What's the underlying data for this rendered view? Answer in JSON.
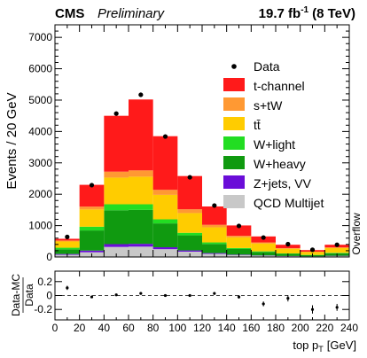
{
  "chart_data": {
    "type": "bar",
    "stacked": true,
    "header": {
      "experiment": "CMS",
      "status": "Preliminary",
      "lumi_value": "19.7 fb",
      "lumi_exp": "-1",
      "lumi_energy": "(8 TeV)"
    },
    "ylabel": "Events / 20 GeV",
    "xlabel_main": "top p",
    "xlabel_sub": "T",
    "xlabel_unit": "[GeV]",
    "overflow_label": "Overflow",
    "ratio_ylabel_top": "Data-MC",
    "ratio_ylabel_bottom": "Data",
    "x_edges": [
      0,
      20,
      40,
      60,
      80,
      100,
      120,
      140,
      160,
      180,
      200,
      220,
      240
    ],
    "x_ticks": [
      0,
      20,
      40,
      60,
      80,
      100,
      120,
      140,
      160,
      180,
      200,
      220,
      240
    ],
    "xlim": [
      0,
      240
    ],
    "ylim": [
      0,
      7400
    ],
    "y_ticks": [
      0,
      1000,
      2000,
      3000,
      4000,
      5000,
      6000,
      7000
    ],
    "series": [
      {
        "name": "QCD Multijet",
        "color": "#c8c8c8",
        "values": [
          70,
          150,
          320,
          330,
          250,
          170,
          100,
          60,
          40,
          25,
          15,
          30
        ]
      },
      {
        "name": "Z+jets, VV",
        "color": "#6a0dd8",
        "values": [
          25,
          55,
          90,
          90,
          60,
          40,
          25,
          15,
          10,
          6,
          4,
          8
        ]
      },
      {
        "name": "W+heavy",
        "color": "#109a10",
        "values": [
          150,
          640,
          1080,
          1080,
          760,
          480,
          290,
          180,
          110,
          70,
          40,
          80
        ]
      },
      {
        "name": "W+light",
        "color": "#22dd22",
        "values": [
          50,
          120,
          190,
          180,
          130,
          80,
          50,
          30,
          20,
          12,
          8,
          15
        ]
      },
      {
        "name": "tt̄",
        "color": "#ffcc00",
        "values": [
          200,
          550,
          850,
          880,
          780,
          630,
          480,
          340,
          250,
          150,
          90,
          150
        ]
      },
      {
        "name": "s+tW",
        "color": "#ff9933",
        "values": [
          30,
          90,
          190,
          200,
          160,
          120,
          80,
          50,
          35,
          20,
          13,
          25
        ]
      },
      {
        "name": "t-channel",
        "color": "#ff1a1a",
        "values": [
          55,
          695,
          1780,
          2260,
          1710,
          1060,
          585,
          330,
          190,
          107,
          50,
          82
        ]
      }
    ],
    "data_points": {
      "name": "Data",
      "x": [
        10,
        30,
        50,
        70,
        90,
        110,
        130,
        150,
        170,
        190,
        210,
        230
      ],
      "y": [
        640,
        2290,
        4570,
        5170,
        3840,
        2540,
        1640,
        990,
        620,
        410,
        230,
        390
      ]
    },
    "ratio": {
      "ylim": [
        -0.35,
        0.35
      ],
      "y_ticks": [
        -0.2,
        0,
        0.2
      ],
      "y_tick_labels": [
        "-0.2",
        "0",
        "0.2"
      ],
      "values": [
        0.11,
        -0.02,
        0.01,
        0.03,
        0.0,
        0.0,
        0.03,
        -0.02,
        -0.12,
        -0.04,
        -0.2,
        -0.17
      ],
      "errors": [
        0.03,
        0.015,
        0.012,
        0.012,
        0.013,
        0.015,
        0.02,
        0.025,
        0.035,
        0.045,
        0.06,
        0.05
      ]
    }
  }
}
